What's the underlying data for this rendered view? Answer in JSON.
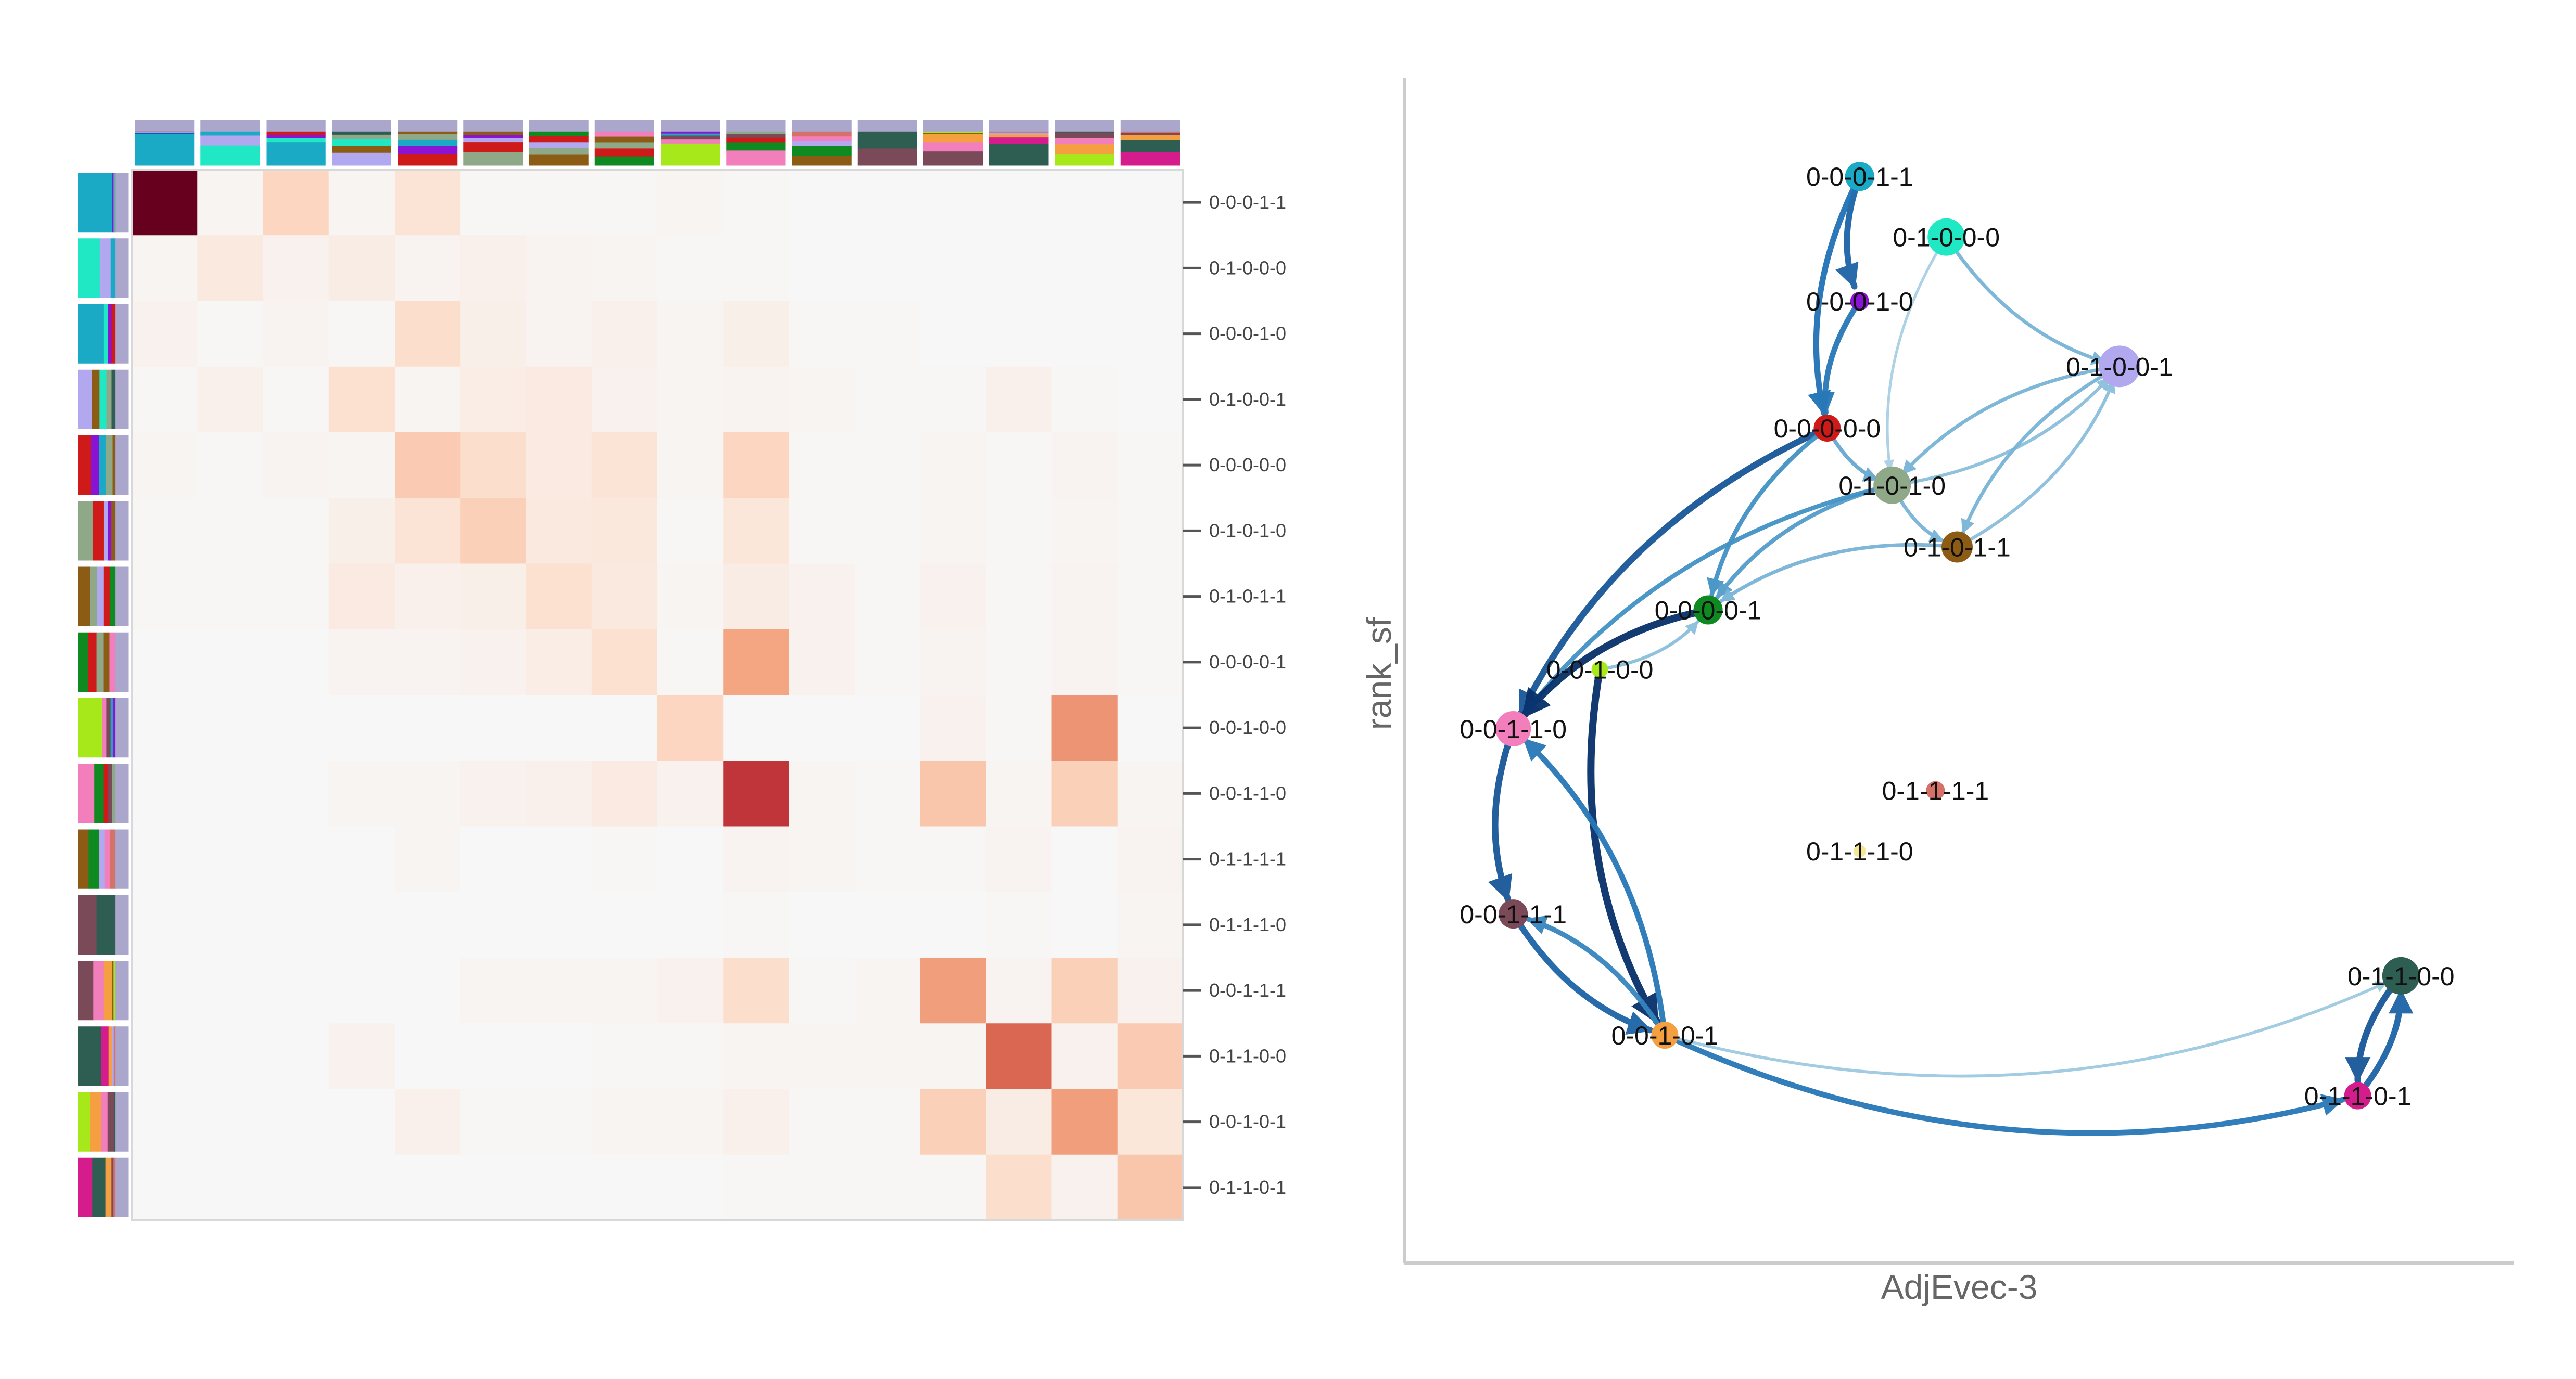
{
  "chart_data": [
    {
      "type": "heatmap",
      "row_labels": [
        "0-0-0-1-1",
        "0-1-0-0-0",
        "0-0-0-1-0",
        "0-1-0-0-1",
        "0-0-0-0-0",
        "0-1-0-1-0",
        "0-1-0-1-1",
        "0-0-0-0-1",
        "0-0-1-0-0",
        "0-0-1-1-0",
        "0-1-1-1-1",
        "0-1-1-1-0",
        "0-0-1-1-1",
        "0-1-1-0-0",
        "0-0-1-0-1",
        "0-1-1-0-1"
      ],
      "values": [
        [
          1.0,
          0.02,
          0.22,
          0.02,
          0.14,
          0.01,
          0.01,
          0.01,
          0.02,
          0.01,
          0.0,
          0.0,
          0.0,
          0.0,
          0.0,
          0.0
        ],
        [
          0.02,
          0.1,
          0.04,
          0.08,
          0.03,
          0.05,
          0.03,
          0.02,
          0.01,
          0.01,
          0.0,
          0.0,
          0.0,
          0.0,
          0.0,
          0.0
        ],
        [
          0.04,
          0.01,
          0.03,
          0.01,
          0.18,
          0.06,
          0.03,
          0.05,
          0.02,
          0.06,
          0.01,
          0.01,
          0.0,
          0.0,
          0.0,
          0.0
        ],
        [
          0.01,
          0.05,
          0.01,
          0.16,
          0.02,
          0.07,
          0.09,
          0.04,
          0.02,
          0.03,
          0.02,
          0.01,
          0.01,
          0.05,
          0.01,
          0.0
        ],
        [
          0.02,
          0.01,
          0.03,
          0.02,
          0.26,
          0.18,
          0.09,
          0.14,
          0.02,
          0.22,
          0.01,
          0.01,
          0.02,
          0.01,
          0.03,
          0.01
        ],
        [
          0.01,
          0.01,
          0.01,
          0.06,
          0.14,
          0.24,
          0.1,
          0.11,
          0.01,
          0.12,
          0.01,
          0.01,
          0.02,
          0.01,
          0.02,
          0.01
        ],
        [
          0.01,
          0.01,
          0.01,
          0.09,
          0.05,
          0.06,
          0.16,
          0.1,
          0.02,
          0.08,
          0.04,
          0.01,
          0.04,
          0.01,
          0.03,
          0.01
        ],
        [
          0.0,
          0.0,
          0.0,
          0.03,
          0.03,
          0.04,
          0.07,
          0.16,
          0.01,
          0.4,
          0.04,
          0.01,
          0.03,
          0.01,
          0.03,
          0.01
        ],
        [
          0.0,
          0.0,
          0.0,
          0.0,
          0.0,
          0.0,
          0.0,
          0.0,
          0.22,
          0.0,
          0.0,
          0.0,
          0.04,
          0.01,
          0.45,
          0.0
        ],
        [
          0.0,
          0.0,
          0.0,
          0.02,
          0.02,
          0.04,
          0.05,
          0.09,
          0.04,
          0.72,
          0.02,
          0.01,
          0.28,
          0.02,
          0.24,
          0.02
        ],
        [
          0.0,
          0.0,
          0.0,
          0.0,
          0.02,
          0.0,
          0.0,
          0.01,
          0.0,
          0.03,
          0.02,
          0.01,
          0.01,
          0.03,
          0.0,
          0.03
        ],
        [
          0.0,
          0.0,
          0.0,
          0.0,
          0.0,
          0.0,
          0.0,
          0.0,
          0.0,
          0.01,
          0.0,
          0.0,
          0.0,
          0.01,
          0.0,
          0.02
        ],
        [
          0.0,
          0.0,
          0.0,
          0.0,
          0.0,
          0.02,
          0.02,
          0.02,
          0.04,
          0.18,
          0.01,
          0.02,
          0.42,
          0.03,
          0.24,
          0.04
        ],
        [
          0.0,
          0.0,
          0.0,
          0.04,
          0.0,
          0.0,
          0.0,
          0.01,
          0.01,
          0.02,
          0.02,
          0.02,
          0.02,
          0.58,
          0.04,
          0.26
        ],
        [
          0.0,
          0.0,
          0.0,
          0.0,
          0.05,
          0.01,
          0.01,
          0.02,
          0.02,
          0.05,
          0.01,
          0.01,
          0.24,
          0.08,
          0.42,
          0.12
        ],
        [
          0.0,
          0.0,
          0.0,
          0.0,
          0.0,
          0.0,
          0.0,
          0.0,
          0.0,
          0.01,
          0.01,
          0.01,
          0.01,
          0.18,
          0.04,
          0.28
        ]
      ],
      "colormap": [
        "#f7f7f7",
        "#fddbc7",
        "#f4a582",
        "#d6604d",
        "#b2182b",
        "#67001f"
      ],
      "grid": false
    },
    {
      "type": "scatter",
      "xlabel": "AdjEvec-3",
      "ylabel": "rank_sf",
      "xlim": [
        0,
        1
      ],
      "ylim": [
        0,
        1
      ],
      "grid": false,
      "points": [
        {
          "label": "0-0-0-1-1",
          "x": 0.41,
          "y": 0.92,
          "color": "#1aaac6"
        },
        {
          "label": "0-1-0-0-0",
          "x": 0.49,
          "y": 0.868,
          "color": "#20e8c4"
        },
        {
          "label": "0-0-0-1-0",
          "x": 0.41,
          "y": 0.813,
          "color": "#8a14d4"
        },
        {
          "label": "0-1-0-0-1",
          "x": 0.65,
          "y": 0.757,
          "color": "#b2a8f0"
        },
        {
          "label": "0-0-0-0-0",
          "x": 0.38,
          "y": 0.704,
          "color": "#cf1a1a"
        },
        {
          "label": "0-1-0-1-0",
          "x": 0.44,
          "y": 0.655,
          "color": "#8fa888"
        },
        {
          "label": "0-1-0-1-1",
          "x": 0.5,
          "y": 0.602,
          "color": "#8c5c14"
        },
        {
          "label": "0-0-0-0-1",
          "x": 0.27,
          "y": 0.548,
          "color": "#0f8a20"
        },
        {
          "label": "0-0-1-0-0",
          "x": 0.17,
          "y": 0.497,
          "color": "#a6e81a"
        },
        {
          "label": "0-0-1-1-0",
          "x": 0.09,
          "y": 0.446,
          "color": "#f27ebc"
        },
        {
          "label": "0-1-1-1-1",
          "x": 0.48,
          "y": 0.393,
          "color": "#d4726a"
        },
        {
          "label": "0-1-1-1-0",
          "x": 0.41,
          "y": 0.341,
          "color": "#f5e890"
        },
        {
          "label": "0-0-1-1-1",
          "x": 0.09,
          "y": 0.287,
          "color": "#7a4a58"
        },
        {
          "label": "0-1-1-0-0",
          "x": 0.91,
          "y": 0.234,
          "color": "#2e5e52"
        },
        {
          "label": "0-0-1-0-1",
          "x": 0.23,
          "y": 0.183,
          "color": "#f5a040"
        },
        {
          "label": "0-1-1-0-1",
          "x": 0.87,
          "y": 0.131,
          "color": "#d41c8c"
        }
      ],
      "edges": [
        {
          "source": "0-0-0-1-1",
          "target": "0-0-0-1-0",
          "weight": 0.8
        },
        {
          "source": "0-0-0-1-1",
          "target": "0-0-0-0-0",
          "weight": 0.75
        },
        {
          "source": "0-0-0-1-0",
          "target": "0-0-0-0-0",
          "weight": 0.7
        },
        {
          "source": "0-1-0-0-0",
          "target": "0-1-0-0-1",
          "weight": 0.35
        },
        {
          "source": "0-1-0-0-0",
          "target": "0-1-0-1-0",
          "weight": 0.2
        },
        {
          "source": "0-1-0-0-1",
          "target": "0-1-0-1-0",
          "weight": 0.35
        },
        {
          "source": "0-1-0-1-0",
          "target": "0-1-0-0-1",
          "weight": 0.3
        },
        {
          "source": "0-1-0-0-1",
          "target": "0-1-0-1-1",
          "weight": 0.35
        },
        {
          "source": "0-1-0-1-1",
          "target": "0-1-0-0-1",
          "weight": 0.3
        },
        {
          "source": "0-1-0-1-0",
          "target": "0-1-0-1-1",
          "weight": 0.35
        },
        {
          "source": "0-0-0-0-0",
          "target": "0-1-0-1-0",
          "weight": 0.4
        },
        {
          "source": "0-0-0-0-0",
          "target": "0-0-1-1-0",
          "weight": 0.85
        },
        {
          "source": "0-0-0-0-0",
          "target": "0-0-0-0-1",
          "weight": 0.5
        },
        {
          "source": "0-1-0-1-0",
          "target": "0-0-0-0-1",
          "weight": 0.45
        },
        {
          "source": "0-1-0-1-0",
          "target": "0-0-1-1-0",
          "weight": 0.5
        },
        {
          "source": "0-1-0-1-1",
          "target": "0-0-0-0-1",
          "weight": 0.35
        },
        {
          "source": "0-0-0-0-1",
          "target": "0-0-1-1-0",
          "weight": 1.0
        },
        {
          "source": "0-0-1-0-0",
          "target": "0-0-1-0-1",
          "weight": 1.0
        },
        {
          "source": "0-0-1-1-0",
          "target": "0-0-1-1-1",
          "weight": 0.85
        },
        {
          "source": "0-0-1-1-1",
          "target": "0-0-1-0-1",
          "weight": 0.8
        },
        {
          "source": "0-0-1-0-1",
          "target": "0-0-1-1-0",
          "weight": 0.7
        },
        {
          "source": "0-0-1-0-1",
          "target": "0-0-1-1-1",
          "weight": 0.6
        },
        {
          "source": "0-0-1-0-1",
          "target": "0-1-1-0-1",
          "weight": 0.7
        },
        {
          "source": "0-0-1-0-1",
          "target": "0-1-1-0-0",
          "weight": 0.25
        },
        {
          "source": "0-1-1-0-0",
          "target": "0-1-1-0-1",
          "weight": 0.85
        },
        {
          "source": "0-1-1-0-1",
          "target": "0-1-1-0-0",
          "weight": 0.8
        },
        {
          "source": "0-0-1-0-0",
          "target": "0-0-0-0-1",
          "weight": 0.3
        }
      ]
    }
  ]
}
